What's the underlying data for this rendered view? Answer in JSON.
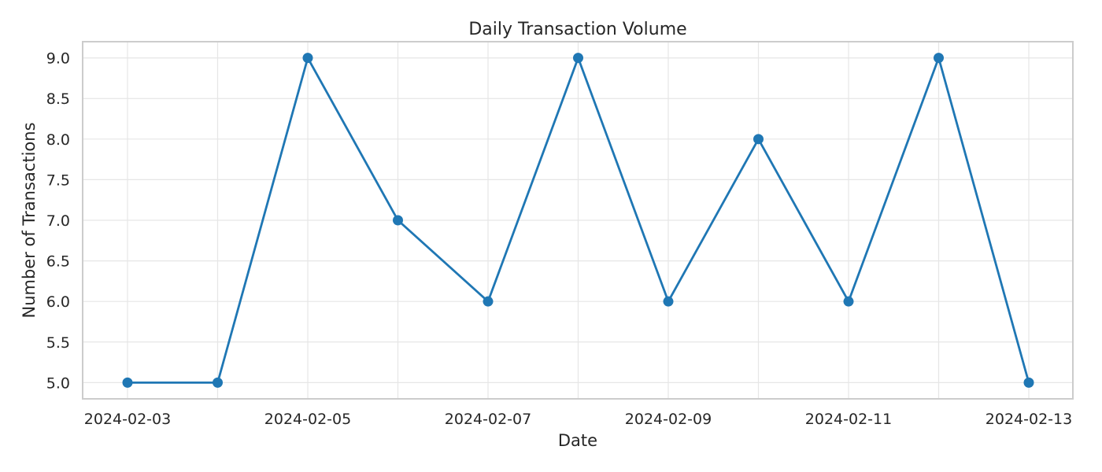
{
  "chart_data": {
    "type": "line",
    "title": "Daily Transaction Volume",
    "xlabel": "Date",
    "ylabel": "Number of Transactions",
    "x": [
      "2024-02-03",
      "2024-02-04",
      "2024-02-05",
      "2024-02-06",
      "2024-02-07",
      "2024-02-08",
      "2024-02-09",
      "2024-02-10",
      "2024-02-11",
      "2024-02-12",
      "2024-02-13"
    ],
    "series": [
      {
        "values": [
          5,
          5,
          9,
          7,
          6,
          9,
          6,
          8,
          6,
          9,
          5
        ]
      }
    ],
    "xticks": [
      "2024-02-03",
      "2024-02-05",
      "2024-02-07",
      "2024-02-09",
      "2024-02-11",
      "2024-02-13"
    ],
    "yticks": [
      "5.0",
      "5.5",
      "6.0",
      "6.5",
      "7.0",
      "7.5",
      "8.0",
      "8.5",
      "9.0"
    ],
    "ylim": [
      4.8,
      9.2
    ],
    "grid": true,
    "line_color": "#1f77b4"
  }
}
